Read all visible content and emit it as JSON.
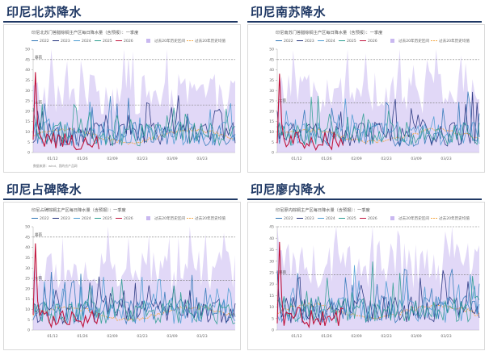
{
  "panels": [
    {
      "title": "印尼北苏降水",
      "chart_data": {
        "type": "line",
        "title": "印尼北苏门答腊棕榈主产区每日降水量（含预报）：一季度",
        "legend": [
          "2022",
          "2023",
          "2024",
          "2025",
          "2026",
          "过去20年历史区间",
          "过去20年历史均值"
        ],
        "yticks": [
          0,
          5,
          10,
          15,
          20,
          25,
          30,
          35,
          40,
          45,
          50
        ],
        "ylim": [
          0,
          50
        ],
        "xticks": [
          "01/12",
          "01/26",
          "02/09",
          "02/23",
          "03/09",
          "03/23"
        ],
        "ref_lines": {
          "high": 45,
          "mid": 23,
          "high_label": "暴雨",
          "mid_label": "大雨"
        },
        "source": "数据来源：wind、我的农产品网"
      }
    },
    {
      "title": "印尼南苏降水",
      "chart_data": {
        "type": "line",
        "title": "印尼南苏门答腊棕榈主产区每日降水量（含预报）：一季度",
        "legend": [
          "2022",
          "2023",
          "2024",
          "2025",
          "2026",
          "过去20年历史区间",
          "过去20年历史均值"
        ],
        "yticks": [
          0,
          5,
          10,
          15,
          20,
          25,
          30,
          35,
          40,
          45,
          50
        ],
        "ylim": [
          0,
          50
        ],
        "xticks": [
          "01/12",
          "01/26",
          "02/09",
          "02/23",
          "03/09",
          "03/23"
        ],
        "ref_lines": {
          "high": 45,
          "mid": 24,
          "high_label": "",
          "mid_label": "大雨"
        },
        "source": ""
      }
    },
    {
      "title": "印尼占碑降水",
      "chart_data": {
        "type": "line",
        "title": "印尼占碑棕榈主产区每日降水量（含预报）：一季度",
        "legend": [
          "2022",
          "2023",
          "2024",
          "2025",
          "2026",
          "过去20年历史区间",
          "过去20年历史均值"
        ],
        "yticks": [
          0,
          5,
          10,
          15,
          20,
          25,
          30,
          35,
          40,
          45,
          50
        ],
        "ylim": [
          0,
          50
        ],
        "xticks": [
          "01/12",
          "01/26",
          "02/09",
          "02/23",
          "03/09",
          "03/23"
        ],
        "ref_lines": {
          "high": 45,
          "mid": 24,
          "high_label": "暴雨",
          "mid_label": "大雨"
        },
        "source": ""
      }
    },
    {
      "title": "印尼廖内降水",
      "chart_data": {
        "type": "line",
        "title": "印尼廖内棕榈主产区每日降水量（含预报）：一季度",
        "legend": [
          "2022",
          "2023",
          "2024",
          "2025",
          "2026",
          "过去20年历史区间",
          "过去20年历史均值"
        ],
        "yticks": [
          0,
          5,
          10,
          15,
          20,
          25,
          30,
          35,
          40,
          45
        ],
        "ylim": [
          0,
          45
        ],
        "xticks": [
          "01/12",
          "01/26",
          "02/09",
          "02/23",
          "03/09",
          "03/23"
        ],
        "ref_lines": {
          "high": 45,
          "mid": 24,
          "high_label": "",
          "mid_label": "暴雨"
        },
        "source": ""
      }
    }
  ],
  "colors": {
    "title": "#1f3864",
    "s2022": "#2e75b6",
    "s2023": "#1f2f7a",
    "s2024": "#4a9bd1",
    "s2025": "#2a9d8f",
    "s2026": "#c0143c",
    "band": "#c9b8f0",
    "mean": "#f4a742"
  }
}
